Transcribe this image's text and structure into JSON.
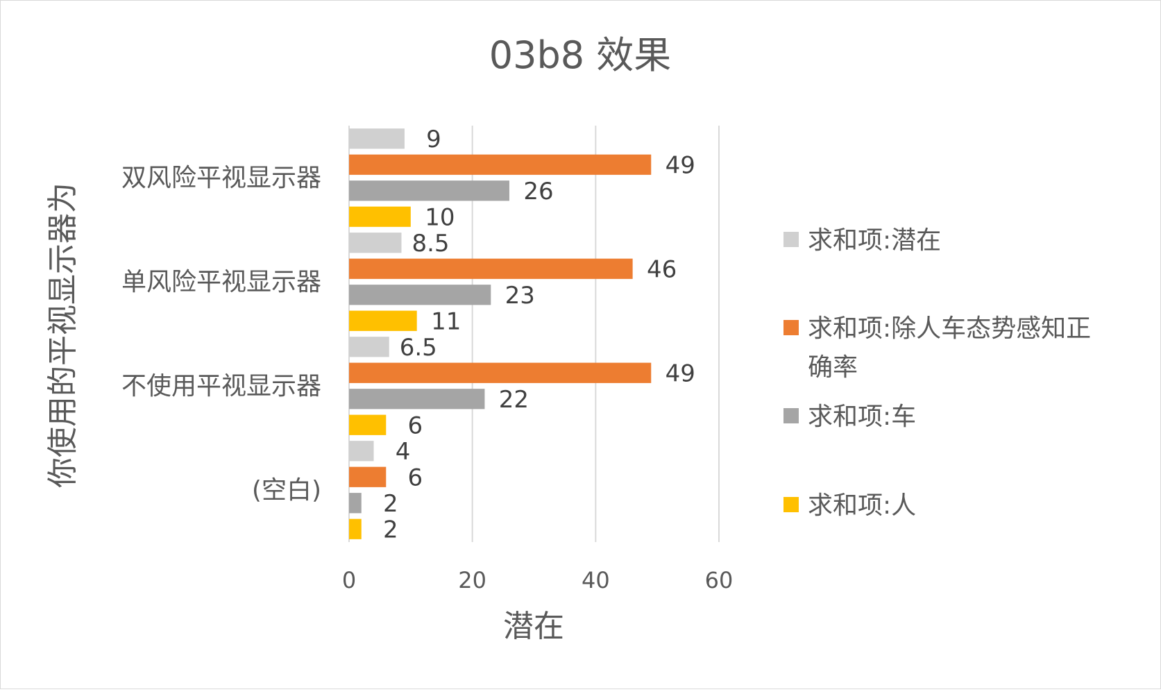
{
  "chart_data": {
    "type": "bar",
    "orientation": "horizontal",
    "title": "03b8 效果",
    "xlabel": "潜在",
    "ylabel": "你使用的平视显示器为",
    "xlim": [
      0,
      60
    ],
    "xticks": [
      "0",
      "20",
      "40",
      "60"
    ],
    "tick_values": [
      0,
      20,
      40,
      60
    ],
    "grid": "vertical",
    "legend_position": "right",
    "categories": [
      "双风险平视显示器",
      "单风险平视显示器",
      "不使用平视显示器",
      "(空白)"
    ],
    "series": [
      {
        "name": "求和项:潜在",
        "color": "#d0d0d0",
        "values": [
          9,
          8.5,
          6.5,
          4
        ],
        "labels": [
          "9",
          "8.5",
          "6.5",
          "4"
        ]
      },
      {
        "name": "求和项:除人车态势感知正确率",
        "color": "#ed7d31",
        "values": [
          49,
          46,
          49,
          6
        ],
        "labels": [
          "49",
          "46",
          "49",
          "6"
        ]
      },
      {
        "name": "求和项:车",
        "color": "#a5a5a5",
        "values": [
          26,
          23,
          22,
          2
        ],
        "labels": [
          "26",
          "23",
          "22",
          "2"
        ]
      },
      {
        "name": "求和项:人",
        "color": "#ffc000",
        "values": [
          10,
          11,
          6,
          2
        ],
        "labels": [
          "10",
          "11",
          "6",
          "2"
        ]
      }
    ]
  }
}
